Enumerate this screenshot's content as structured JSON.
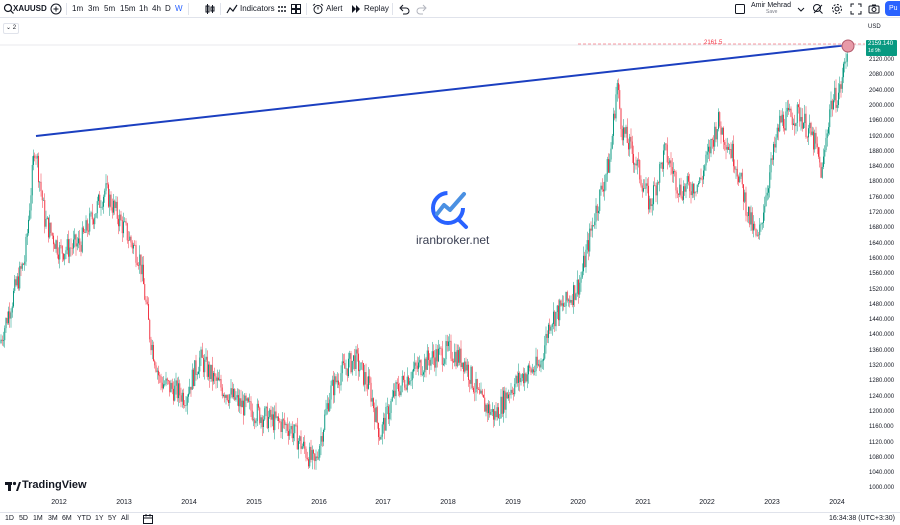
{
  "symbol": "XAUUSD",
  "timeframes": [
    "1m",
    "3m",
    "5m",
    "15m",
    "1h",
    "4h",
    "D",
    "W"
  ],
  "active_timeframe": "W",
  "toolbar": {
    "indicators_label": "Indicators",
    "alert_label": "Alert",
    "replay_label": "Replay"
  },
  "user": {
    "name": "Amir Mehrad",
    "save_label": "Save"
  },
  "publish_label": "Pu",
  "legend_toggle": "2",
  "axis": {
    "currency": "USD",
    "price_ticks": [
      "2120.000",
      "2080.000",
      "2040.000",
      "2000.000",
      "1960.000",
      "1920.000",
      "1880.000",
      "1840.000",
      "1800.000",
      "1760.000",
      "1720.000",
      "1680.000",
      "1640.000",
      "1600.000",
      "1560.000",
      "1520.000",
      "1480.000",
      "1440.000",
      "1400.000",
      "1360.000",
      "1320.000",
      "1280.000",
      "1240.000",
      "1200.000",
      "1160.000",
      "1120.000",
      "1080.000",
      "1040.000",
      "1000.000"
    ],
    "year_ticks": [
      "2012",
      "2013",
      "2014",
      "2015",
      "2016",
      "2017",
      "2018",
      "2019",
      "2020",
      "2021",
      "2022",
      "2023",
      "2024"
    ]
  },
  "current_price": {
    "value": "2159.140",
    "countdown": "1d 9h"
  },
  "level_label": "2161.5",
  "watermark": "iranbroker.net",
  "brand": "TradingView",
  "ranges": [
    "1D",
    "5D",
    "1M",
    "3M",
    "6M",
    "YTD",
    "1Y",
    "5Y",
    "All"
  ],
  "clock": "16:34:38 (UTC+3:30)",
  "colors": {
    "up": "#089981",
    "down": "#f23645",
    "trendline": "#1b3fc0",
    "accent": "#2962ff"
  }
}
